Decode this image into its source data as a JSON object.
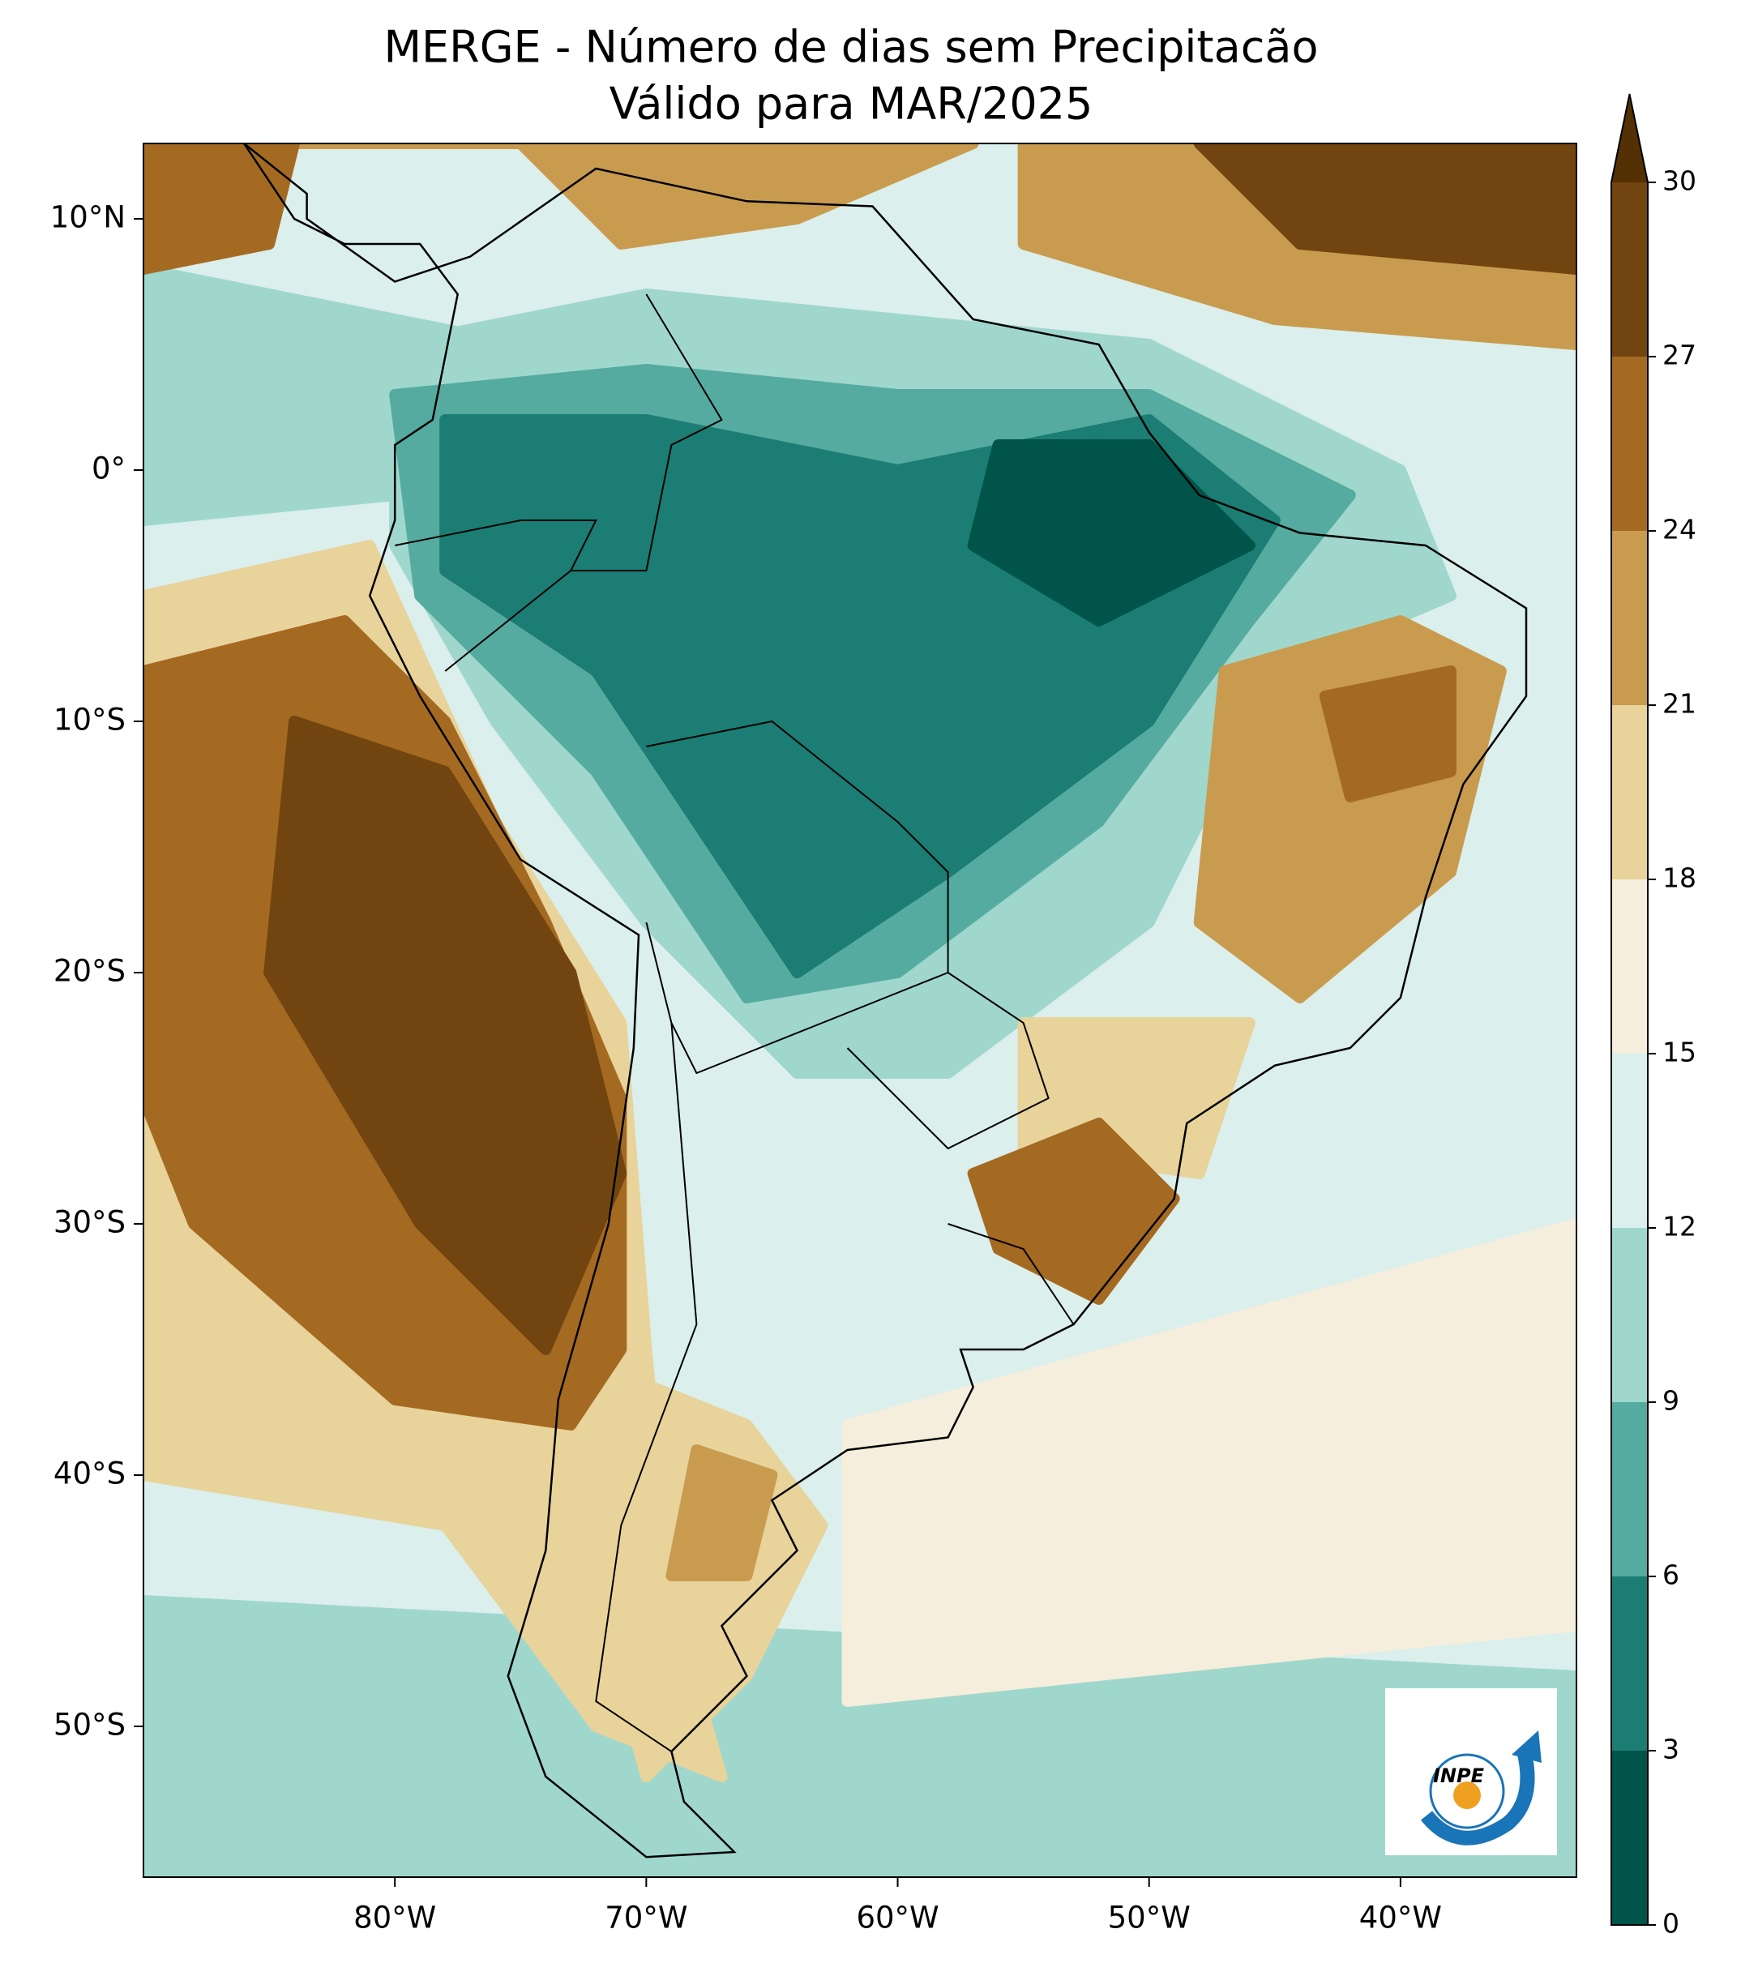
{
  "header": {
    "title": "MERGE - Número de dias sem Precipitacão",
    "subtitle": "Válido para MAR/2025"
  },
  "map": {
    "xlim": [
      -90,
      -33
    ],
    "ylim": [
      -56,
      13
    ],
    "xticks": [
      {
        "value": -80,
        "label": "80°W"
      },
      {
        "value": -70,
        "label": "70°W"
      },
      {
        "value": -60,
        "label": "60°W"
      },
      {
        "value": -50,
        "label": "50°W"
      },
      {
        "value": -40,
        "label": "40°W"
      }
    ],
    "yticks": [
      {
        "value": 10,
        "label": "10°N"
      },
      {
        "value": 0,
        "label": "0°"
      },
      {
        "value": -10,
        "label": "10°S"
      },
      {
        "value": -20,
        "label": "20°S"
      },
      {
        "value": -30,
        "label": "30°S"
      },
      {
        "value": -40,
        "label": "40°S"
      },
      {
        "value": -50,
        "label": "50°S"
      }
    ]
  },
  "colorbar": {
    "levels": [
      0,
      3,
      6,
      9,
      12,
      15,
      18,
      21,
      24,
      27,
      30
    ],
    "colors": [
      "#01544a",
      "#1b7d73",
      "#56aba0",
      "#a0d7cd",
      "#dbefec",
      "#f5eedc",
      "#e8d39b",
      "#c99b4f",
      "#a46a22",
      "#724510"
    ],
    "extend_color": "#543005"
  },
  "logo": {
    "text": "INPE"
  }
}
